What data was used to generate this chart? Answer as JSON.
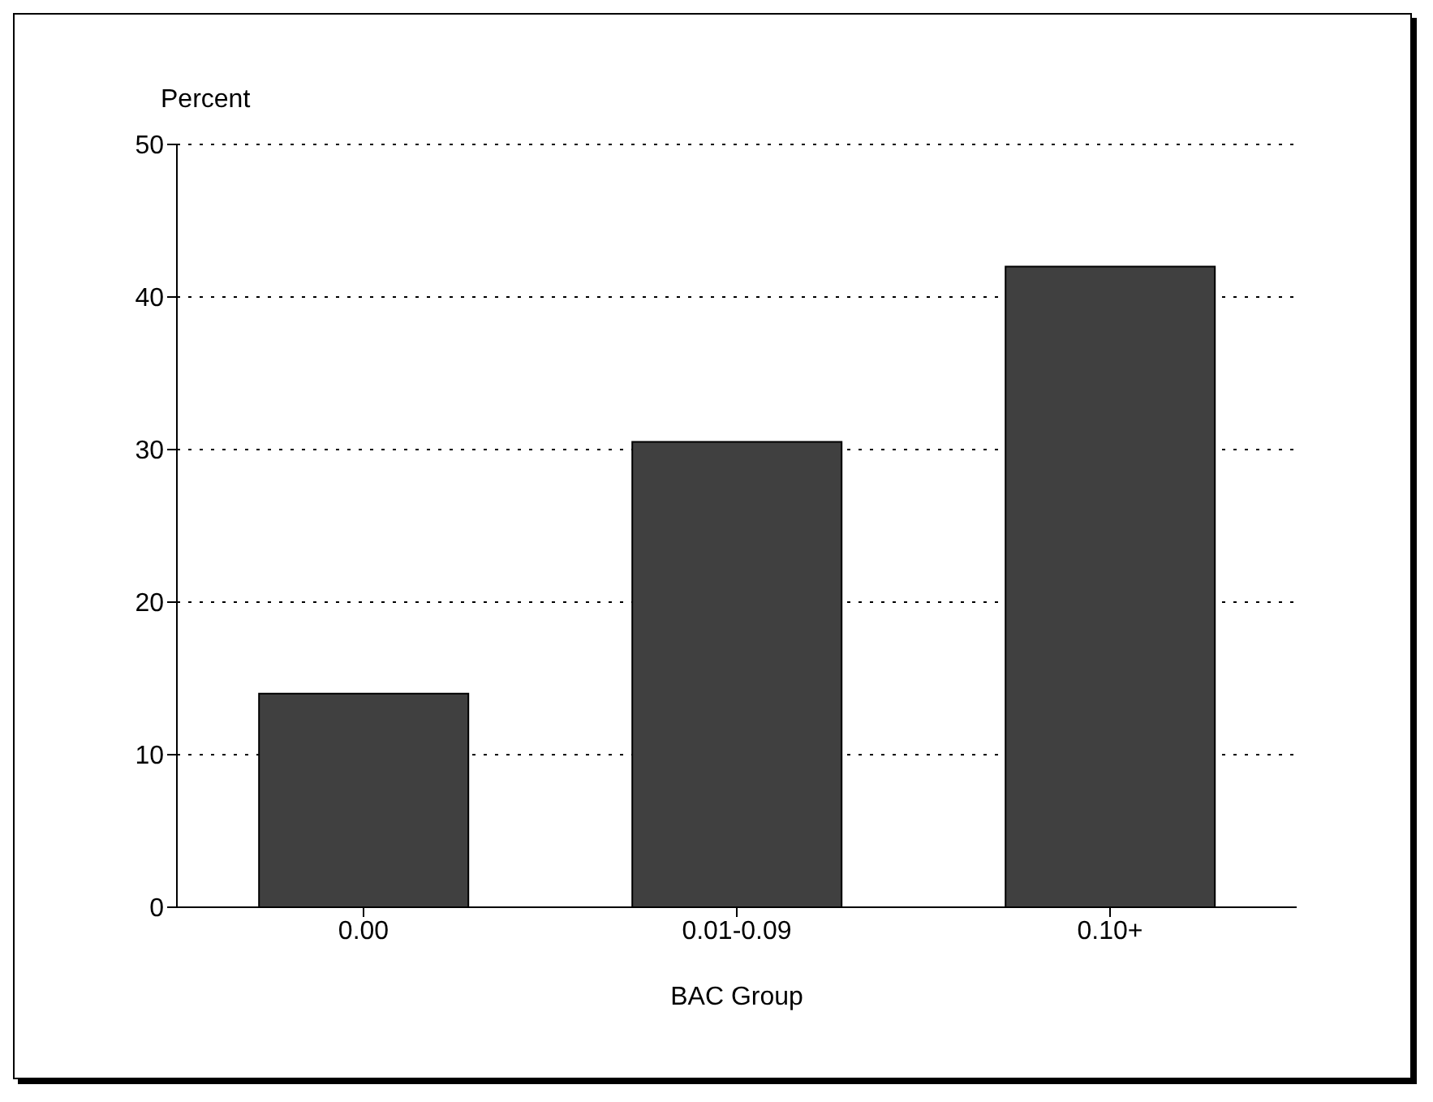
{
  "chart_data": {
    "type": "bar",
    "xlabel": "BAC Group",
    "ylabel": "Percent",
    "categories": [
      "0.00",
      "0.01-0.09",
      "0.10+"
    ],
    "values": [
      14,
      30.5,
      42
    ],
    "color": "#404040",
    "ylim": [
      0,
      50
    ],
    "yticks": [
      0,
      10,
      20,
      30,
      40,
      50
    ],
    "grid": "y",
    "legend": false
  }
}
